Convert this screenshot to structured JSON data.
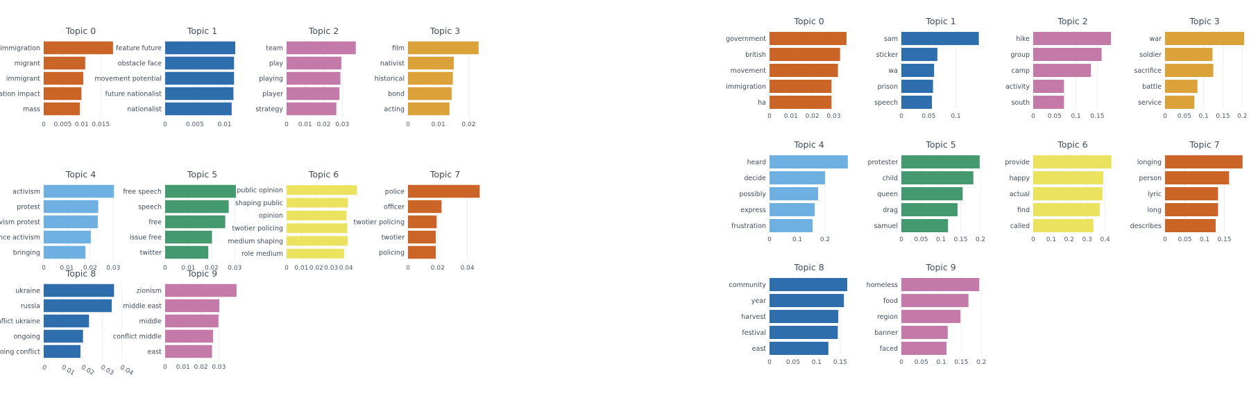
{
  "colors": {
    "orange": "#ca6427",
    "blue": "#2f6ead",
    "pink": "#c47aa8",
    "amber": "#dba23a",
    "skyblue": "#6eb0e2",
    "green": "#45996e",
    "yellow": "#ebe35e"
  },
  "chart_data": [
    {
      "type": "bar",
      "orientation": "horizontal",
      "panels": [
        {
          "title": "Topic 0",
          "color": "orange",
          "labels": [
            "mass",
            "immigration impact",
            "immigrant",
            "migrant",
            "immigration"
          ],
          "values": [
            0.0095,
            0.0099,
            0.0104,
            0.0109,
            0.0182
          ],
          "ticks": [
            0,
            0.005,
            0.01,
            0.015
          ],
          "tick_labels": [
            "0",
            "0.005",
            "0.01",
            "0.015"
          ],
          "xlim": [
            0,
            0.0195
          ]
        },
        {
          "title": "Topic 1",
          "color": "blue",
          "labels": [
            "nationalist",
            "future nationalist",
            "movement potential",
            "obstacle face",
            "feature future"
          ],
          "values": [
            0.0112,
            0.0115,
            0.0116,
            0.0116,
            0.0118
          ],
          "ticks": [
            0,
            0.005,
            0.01
          ],
          "tick_labels": [
            "0",
            "0.005",
            "0.01"
          ],
          "xlim": [
            0,
            0.0125
          ]
        },
        {
          "title": "Topic 2",
          "color": "pink",
          "labels": [
            "strategy",
            "player",
            "playing",
            "play",
            "team"
          ],
          "values": [
            0.0268,
            0.0285,
            0.029,
            0.0295,
            0.0373
          ],
          "ticks": [
            0,
            0.01,
            0.02,
            0.03
          ],
          "tick_labels": [
            "0",
            "0.01",
            "0.02",
            "0.03"
          ],
          "xlim": [
            0,
            0.04
          ]
        },
        {
          "title": "Topic 3",
          "color": "amber",
          "labels": [
            "acting",
            "bond",
            "historical",
            "nativist",
            "film"
          ],
          "values": [
            0.0137,
            0.0144,
            0.0148,
            0.0151,
            0.0233
          ],
          "ticks": [
            0,
            0.01,
            0.02
          ],
          "tick_labels": [
            "0",
            "0.01",
            "0.02"
          ],
          "xlim": [
            0,
            0.0245
          ]
        },
        {
          "title": "Topic 4",
          "color": "skyblue",
          "labels": [
            "bringing",
            "presence activism",
            "activism protest",
            "protest",
            "activism"
          ],
          "values": [
            0.018,
            0.0203,
            0.0233,
            0.0235,
            0.0303
          ],
          "ticks": [
            0,
            0.01,
            0.02,
            0.03
          ],
          "tick_labels": [
            "0",
            "0.01",
            "0.02",
            "0.03"
          ],
          "xlim": [
            0,
            0.032
          ]
        },
        {
          "title": "Topic 5",
          "color": "green",
          "labels": [
            "twitter",
            "issue free",
            "free",
            "speech",
            "free speech"
          ],
          "values": [
            0.0186,
            0.0202,
            0.0259,
            0.0274,
            0.0305
          ],
          "ticks": [
            0,
            0.01,
            0.02,
            0.03
          ],
          "tick_labels": [
            "0",
            "0.01",
            "0.02",
            "0.03"
          ],
          "xlim": [
            0,
            0.032
          ]
        },
        {
          "title": "Topic 6",
          "color": "yellow",
          "labels": [
            "role medium",
            "medium shaping",
            "twotier policing",
            "opinion",
            "public opinion",
            "shaping public"
          ],
          "values": [
            0.0387,
            0.0412,
            0.0409,
            0.0404,
            0.0474,
            0.0413
          ],
          "display_order": [
            "role medium",
            "medium shaping",
            "twotier policing",
            "opinion",
            "shaping public",
            "public opinion"
          ],
          "ticks": [
            0,
            0.01,
            0.02,
            0.03,
            0.04
          ],
          "tick_labels": [
            "0",
            "0.01",
            "0.02",
            "0.03",
            "0.04"
          ],
          "xlim": [
            0,
            0.05
          ]
        },
        {
          "title": "Topic 7",
          "color": "orange",
          "labels": [
            "policing",
            "twotier",
            "twotier policing",
            "officer",
            "police"
          ],
          "values": [
            0.0187,
            0.0187,
            0.0193,
            0.0226,
            0.0483
          ],
          "ticks": [
            0,
            0.02,
            0.04
          ],
          "tick_labels": [
            "0",
            "0.02",
            "0.04"
          ],
          "xlim": [
            0,
            0.05
          ]
        },
        {
          "title": "Topic 8",
          "color": "blue",
          "labels": [
            "ongoing conflict",
            "ongoing",
            "conflict ukraine",
            "russia",
            "ukraine"
          ],
          "values": [
            0.0188,
            0.0201,
            0.0232,
            0.0348,
            0.036
          ],
          "ticks": [
            0,
            0.01,
            0.02,
            0.03,
            0.04
          ],
          "tick_labels": [
            "0",
            "0.01",
            "0.02",
            "0.03",
            "0.04"
          ],
          "xlim": [
            0,
            0.038
          ],
          "tick_rotation": 30
        },
        {
          "title": "Topic 9",
          "color": "pink",
          "labels": [
            "east",
            "conflict middle",
            "middle",
            "middle east",
            "zionism"
          ],
          "values": [
            0.0262,
            0.0268,
            0.0298,
            0.0303,
            0.0399
          ],
          "ticks": [
            0,
            0.01,
            0.02,
            0.03
          ],
          "tick_labels": [
            "0",
            "0.01",
            "0.02",
            "0.03"
          ],
          "xlim": [
            0,
            0.0415
          ]
        }
      ]
    },
    {
      "type": "bar",
      "orientation": "horizontal",
      "panels": [
        {
          "title": "Topic 0",
          "color": "orange",
          "labels": [
            "ha",
            "immigration",
            "movement",
            "british",
            "government"
          ],
          "values": [
            0.029,
            0.029,
            0.032,
            0.033,
            0.036
          ],
          "ticks": [
            0,
            0.01,
            0.02,
            0.03
          ],
          "tick_labels": [
            "0",
            "0.01",
            "0.02",
            "0.03"
          ],
          "xlim": [
            0,
            0.037
          ]
        },
        {
          "title": "Topic 1",
          "color": "blue",
          "labels": [
            "speech",
            "prison",
            "wa",
            "sticker",
            "sam"
          ],
          "values": [
            0.056,
            0.058,
            0.06,
            0.066,
            0.142
          ],
          "ticks": [
            0,
            0.05,
            0.1
          ],
          "tick_labels": [
            "0",
            "0.05",
            "0.1"
          ],
          "xlim": [
            0,
            0.145
          ]
        },
        {
          "title": "Topic 2",
          "color": "pink",
          "labels": [
            "south",
            "activity",
            "camp",
            "group",
            "hike"
          ],
          "values": [
            0.072,
            0.072,
            0.135,
            0.16,
            0.182
          ],
          "ticks": [
            0,
            0.05,
            0.1,
            0.15
          ],
          "tick_labels": [
            "0",
            "0.05",
            "0.1",
            "0.15"
          ],
          "xlim": [
            0,
            0.185
          ]
        },
        {
          "title": "Topic 3",
          "color": "amber",
          "labels": [
            "service",
            "battle",
            "sacrifice",
            "soldier",
            "war"
          ],
          "values": [
            0.076,
            0.084,
            0.125,
            0.123,
            0.205
          ],
          "ticks": [
            0,
            0.05,
            0.1,
            0.15,
            0.2
          ],
          "tick_labels": [
            "0",
            "0.05",
            "0.1",
            "0.15",
            "0.2"
          ],
          "xlim": [
            0,
            0.205
          ]
        },
        {
          "title": "Topic 4",
          "color": "skyblue",
          "labels": [
            "frustration",
            "express",
            "possibly",
            "decide",
            "heard"
          ],
          "values": [
            0.155,
            0.163,
            0.175,
            0.2,
            0.282
          ],
          "ticks": [
            0,
            0.1,
            0.2
          ],
          "tick_labels": [
            "0",
            "0.1",
            "0.2"
          ],
          "xlim": [
            0,
            0.285
          ]
        },
        {
          "title": "Topic 5",
          "color": "green",
          "labels": [
            "samuel",
            "drag",
            "queen",
            "child",
            "protester"
          ],
          "values": [
            0.118,
            0.142,
            0.155,
            0.182,
            0.198
          ],
          "ticks": [
            0,
            0.05,
            0.1,
            0.15,
            0.2
          ],
          "tick_labels": [
            "0",
            "0.05",
            "0.1",
            "0.15",
            "0.2"
          ],
          "xlim": [
            0,
            0.2
          ]
        },
        {
          "title": "Topic 6",
          "color": "yellow",
          "labels": [
            "called",
            "find",
            "actual",
            "happy",
            "provide"
          ],
          "values": [
            0.335,
            0.37,
            0.385,
            0.39,
            0.435
          ],
          "ticks": [
            0,
            0.1,
            0.2,
            0.3,
            0.4
          ],
          "tick_labels": [
            "0",
            "0.1",
            "0.2",
            "0.3",
            "0.4"
          ],
          "xlim": [
            0,
            0.44
          ]
        },
        {
          "title": "Topic 7",
          "color": "orange",
          "labels": [
            "describes",
            "long",
            "lyric",
            "person",
            "longing"
          ],
          "values": [
            0.128,
            0.134,
            0.134,
            0.162,
            0.196
          ],
          "ticks": [
            0,
            0.05,
            0.1,
            0.15
          ],
          "tick_labels": [
            "0",
            "0.05",
            "0.1",
            "0.15"
          ],
          "xlim": [
            0,
            0.2
          ]
        },
        {
          "title": "Topic 8",
          "color": "blue",
          "labels": [
            "east",
            "festival",
            "harvest",
            "year",
            "community"
          ],
          "values": [
            0.125,
            0.145,
            0.146,
            0.158,
            0.165
          ],
          "ticks": [
            0,
            0.05,
            0.1,
            0.15
          ],
          "tick_labels": [
            "0",
            "0.05",
            "0.1",
            "0.15"
          ],
          "xlim": [
            0,
            0.168
          ]
        },
        {
          "title": "Topic 9",
          "color": "pink",
          "labels": [
            "faced",
            "banner",
            "region",
            "food",
            "homeless"
          ],
          "values": [
            0.113,
            0.116,
            0.148,
            0.168,
            0.195
          ],
          "ticks": [
            0,
            0.05,
            0.1,
            0.15,
            0.2
          ],
          "tick_labels": [
            "0",
            "0.05",
            "0.1",
            "0.15",
            "0.2"
          ],
          "xlim": [
            0,
            0.198
          ]
        }
      ]
    }
  ]
}
